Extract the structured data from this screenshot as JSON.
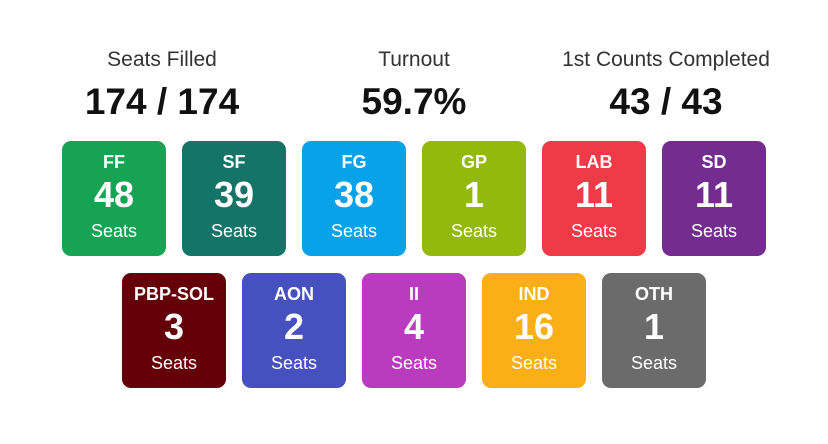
{
  "stats": {
    "seats": {
      "label": "Seats Filled",
      "value": "174 / 174"
    },
    "turnout": {
      "label": "Turnout",
      "value": "59.7%"
    },
    "counts": {
      "label": "1st Counts Completed",
      "value": "43 / 43"
    }
  },
  "parties": [
    {
      "abbr": "FF",
      "seats": "48",
      "unit": "Seats",
      "color": "#16a454"
    },
    {
      "abbr": "SF",
      "seats": "39",
      "unit": "Seats",
      "color": "#137467"
    },
    {
      "abbr": "FG",
      "seats": "38",
      "unit": "Seats",
      "color": "#08a2e8"
    },
    {
      "abbr": "GP",
      "seats": "1",
      "unit": "Seats",
      "color": "#94b90d"
    },
    {
      "abbr": "LAB",
      "seats": "11",
      "unit": "Seats",
      "color": "#ef3a47"
    },
    {
      "abbr": "SD",
      "seats": "11",
      "unit": "Seats",
      "color": "#722d8e"
    },
    {
      "abbr": "PBP-SOL",
      "seats": "3",
      "unit": "Seats",
      "color": "#650009"
    },
    {
      "abbr": "AON",
      "seats": "2",
      "unit": "Seats",
      "color": "#4750bf"
    },
    {
      "abbr": "II",
      "seats": "4",
      "unit": "Seats",
      "color": "#b93bbe"
    },
    {
      "abbr": "IND",
      "seats": "16",
      "unit": "Seats",
      "color": "#fbaf17"
    },
    {
      "abbr": "OTH",
      "seats": "1",
      "unit": "Seats",
      "color": "#6b6b6b"
    }
  ]
}
